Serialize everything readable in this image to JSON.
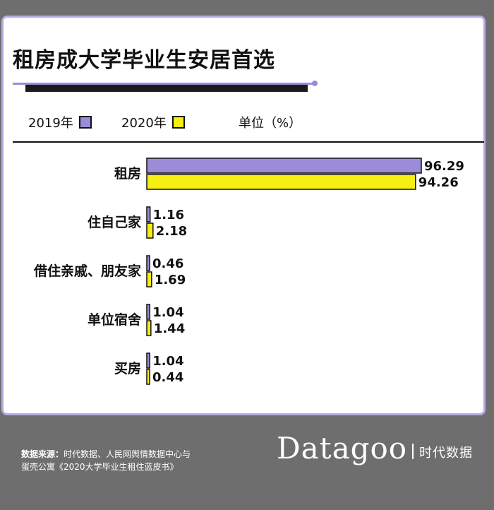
{
  "title": "租房成大学毕业生安居首选",
  "legend": {
    "items": [
      {
        "label": "2019年",
        "color": "#9b8cd8"
      },
      {
        "label": "2020年",
        "color": "#f7ee12"
      }
    ],
    "unit": "单位（%）"
  },
  "chart_data": {
    "type": "bar",
    "orientation": "horizontal",
    "categories": [
      "租房",
      "住自己家",
      "借住亲戚、朋友家",
      "单位宿舍",
      "买房"
    ],
    "series": [
      {
        "name": "2019年",
        "values": [
          96.29,
          1.16,
          0.46,
          1.04,
          1.04
        ],
        "labels": [
          "96.29",
          "1.16",
          "0.46",
          "1.04",
          "1.04"
        ],
        "color": "#9b8cd8"
      },
      {
        "name": "2020年",
        "values": [
          94.26,
          2.18,
          1.69,
          1.44,
          0.44
        ],
        "labels": [
          "94.26",
          "2.18",
          "1.69",
          "1.44",
          "0.44"
        ],
        "color": "#f7ee12"
      }
    ],
    "xlim": [
      0,
      100
    ],
    "grid": false,
    "legend_position": "top-left"
  },
  "footer": {
    "source_label": "数据来源：",
    "source_line1": "时代数据、人民网舆情数据中心与",
    "source_line2": "蛋壳公寓《2020大学毕业生租住蓝皮书》",
    "brand": "Datagoo",
    "brand_cn": "时代数据"
  }
}
